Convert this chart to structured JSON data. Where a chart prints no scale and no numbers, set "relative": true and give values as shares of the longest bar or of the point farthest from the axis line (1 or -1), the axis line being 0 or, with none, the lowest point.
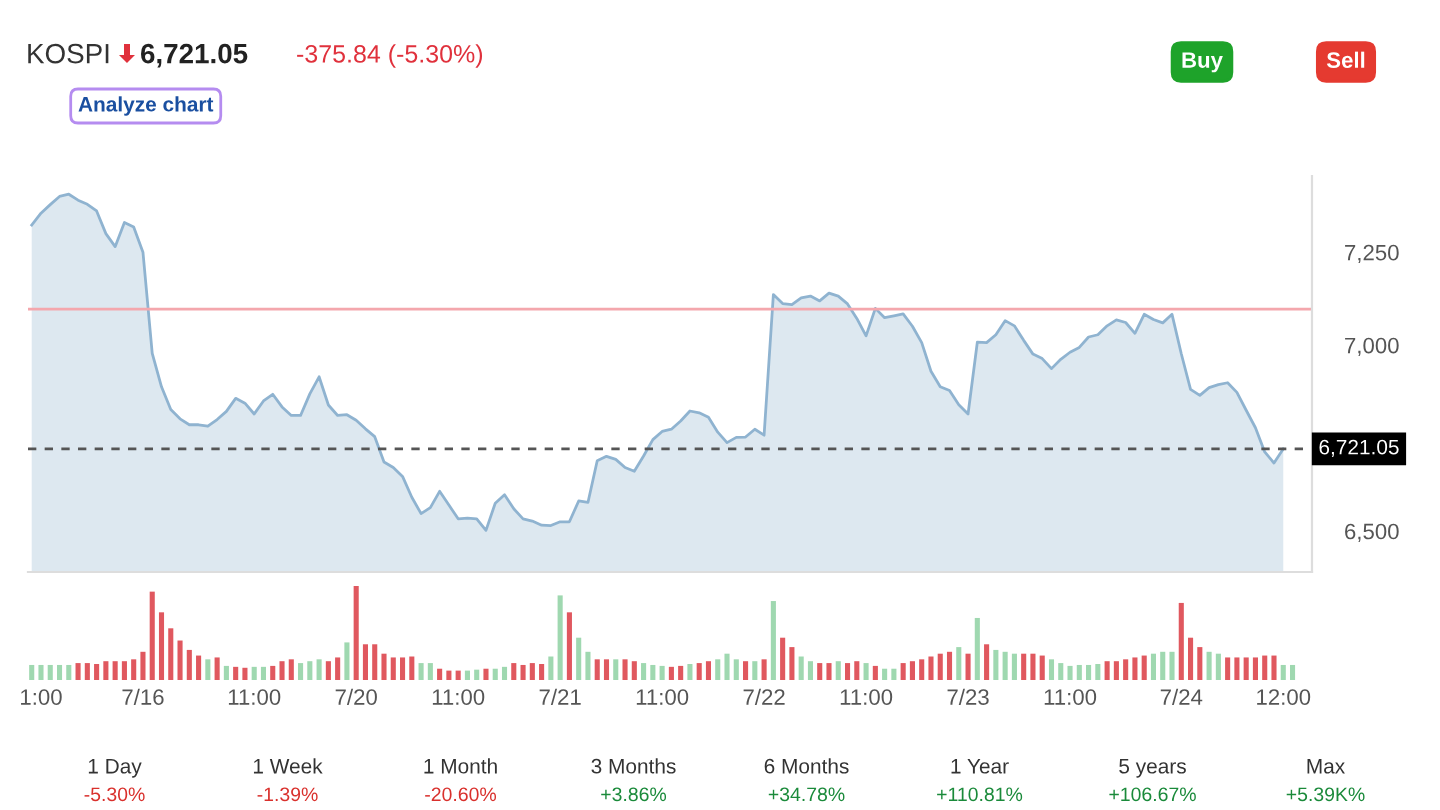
{
  "chart_data": [
    {
      "type": "area",
      "title": "KOSPI",
      "annotations": [
        "6,721.05",
        "-375.84 (-5.30%)",
        "Analyze chart",
        "Buy",
        "Sell",
        "1 Day",
        "-5.30%",
        "1 Week",
        "-1.39%",
        "1 Month",
        "-20.60%",
        "3 Months",
        "+3.86%",
        "6 Months",
        "+34.78%",
        "1 Year",
        "+110.81%",
        "5 years",
        "+106.67%",
        "Max",
        "+5.39K%"
      ],
      "categories": [
        null,
        "1:00",
        null,
        null,
        null,
        null,
        null,
        null,
        null,
        null,
        null,
        null,
        "7/16",
        null,
        null,
        null,
        null,
        null,
        null,
        null,
        null,
        null,
        null,
        null,
        "11:00",
        null,
        null,
        null,
        null,
        null,
        null,
        null,
        null,
        null,
        null,
        "7/20",
        null,
        null,
        null,
        null,
        null,
        null,
        null,
        null,
        null,
        null,
        "11:00",
        null,
        null,
        null,
        null,
        null,
        null,
        null,
        null,
        null,
        null,
        "7/21",
        null,
        null,
        null,
        null,
        null,
        null,
        null,
        null,
        null,
        null,
        "11:00",
        null,
        null,
        null,
        null,
        null,
        null,
        null,
        null,
        null,
        null,
        "7/22",
        null,
        null,
        null,
        null,
        null,
        null,
        null,
        null,
        null,
        null,
        "11:00",
        null,
        null,
        null,
        null,
        null,
        null,
        null,
        null,
        null,
        null,
        "7/23",
        null,
        null,
        null,
        null,
        null,
        null,
        null,
        null,
        null,
        null,
        "11:00",
        null,
        null,
        null,
        null,
        null,
        null,
        null,
        null,
        null,
        null,
        null,
        "7/24",
        null,
        null,
        null,
        null,
        null,
        null,
        null,
        null,
        null,
        null,
        "12:00",
        null
      ],
      "series": [
        {
          "color": "#8fb3d0",
          "values": [
            7323,
            7355,
            7378,
            7400,
            7406,
            7390,
            7379,
            7361,
            7300,
            7265,
            7330,
            7318,
            7250,
            6978,
            6888,
            6827,
            6802,
            6786,
            6786,
            6782,
            6800,
            6822,
            6857,
            6844,
            6815,
            6850,
            6868,
            6834,
            6811,
            6811,
            6869,
            6915,
            6839,
            6811,
            6813,
            6798,
            6775,
            6754,
            6686,
            6671,
            6647,
            6591,
            6547,
            6563,
            6607,
            6570,
            6533,
            6535,
            6533,
            6502,
            6575,
            6598,
            6560,
            6533,
            6527,
            6516,
            6515,
            6525,
            6525,
            6581,
            6577,
            6689,
            6701,
            6693,
            6671,
            6661,
            6702,
            6746,
            6768,
            6774,
            6796,
            6823,
            6818,
            6806,
            6766,
            6738,
            6752,
            6753,
            6774,
            6758,
            7136,
            7112,
            7109,
            7127,
            7132,
            7119,
            7140,
            7132,
            7111,
            7072,
            7025,
            7099,
            7074,
            7079,
            7084,
            7051,
            7007,
            6930,
            6888,
            6878,
            6840,
            6815,
            7008,
            7007,
            7028,
            7066,
            7052,
            7013,
            6976,
            6964,
            6937,
            6962,
            6981,
            6994,
            7022,
            7028,
            7052,
            7068,
            7061,
            7032,
            7083,
            7069,
            7060,
            7083,
            6977,
            6881,
            6865,
            6886,
            6894,
            6899,
            6873,
            6825,
            6778,
            6713,
            6683,
            6721,
            null
          ]
        }
      ],
      "ylim": [
        6390,
        7455
      ],
      "yticks": [
        {
          "value": 6500,
          "label": "6,500"
        },
        {
          "value": 7000,
          "label": "7,000"
        },
        {
          "value": 7250,
          "label": "7,250"
        }
      ],
      "ref_lines": [
        {
          "axis": "y",
          "value": 7096.89,
          "color": "#f4a7ad",
          "line_style": "solid"
        },
        {
          "axis": "y",
          "value": 6721.05,
          "label": "6,721.05",
          "color": "#555555",
          "line_style": "dashed"
        }
      ],
      "grid": false,
      "legend": false
    },
    {
      "type": "bar",
      "relative": true,
      "categories": [
        null,
        null,
        null,
        null,
        null,
        null,
        null,
        null,
        null,
        null,
        null,
        null,
        null,
        null,
        null,
        null,
        null,
        null,
        null,
        null,
        null,
        null,
        null,
        null,
        null,
        null,
        null,
        null,
        null,
        null,
        null,
        null,
        null,
        null,
        null,
        null,
        null,
        null,
        null,
        null,
        null,
        null,
        null,
        null,
        null,
        null,
        null,
        null,
        null,
        null,
        null,
        null,
        null,
        null,
        null,
        null,
        null,
        null,
        null,
        null,
        null,
        null,
        null,
        null,
        null,
        null,
        null,
        null,
        null,
        null,
        null,
        null,
        null,
        null,
        null,
        null,
        null,
        null,
        null,
        null,
        null,
        null,
        null,
        null,
        null,
        null,
        null,
        null,
        null,
        null,
        null,
        null,
        null,
        null,
        null,
        null,
        null,
        null,
        null,
        null,
        null,
        null,
        null,
        null,
        null,
        null,
        null,
        null,
        null,
        null,
        null,
        null,
        null,
        null,
        null,
        null,
        null,
        null,
        null,
        null,
        null,
        null,
        null,
        null,
        null,
        null,
        null,
        null,
        null,
        null,
        null,
        null,
        null,
        null,
        null,
        null,
        null
      ],
      "series": [
        {
          "values": [
            0.16,
            0.16,
            0.16,
            0.16,
            0.16,
            0.18,
            0.18,
            0.17,
            0.2,
            0.2,
            0.2,
            0.22,
            0.3,
            0.94,
            0.72,
            0.55,
            0.42,
            0.32,
            0.26,
            0.22,
            0.24,
            0.15,
            0.14,
            0.13,
            0.14,
            0.14,
            0.15,
            0.2,
            0.22,
            0.18,
            0.2,
            0.22,
            0.2,
            0.24,
            0.4,
            1.0,
            0.38,
            0.38,
            0.28,
            0.24,
            0.24,
            0.25,
            0.18,
            0.18,
            0.12,
            0.1,
            0.1,
            0.1,
            0.11,
            0.12,
            0.12,
            0.14,
            0.18,
            0.16,
            0.18,
            0.17,
            0.25,
            0.9,
            0.72,
            0.45,
            0.3,
            0.22,
            0.22,
            0.22,
            0.22,
            0.2,
            0.18,
            0.16,
            0.15,
            0.14,
            0.15,
            0.17,
            0.18,
            0.2,
            0.22,
            0.28,
            0.22,
            0.2,
            0.2,
            0.22,
            0.84,
            0.45,
            0.35,
            0.25,
            0.2,
            0.18,
            0.18,
            0.2,
            0.18,
            0.2,
            0.18,
            0.15,
            0.12,
            0.12,
            0.18,
            0.2,
            0.22,
            0.25,
            0.28,
            0.3,
            0.35,
            0.28,
            0.66,
            0.38,
            0.32,
            0.3,
            0.28,
            0.28,
            0.28,
            0.26,
            0.22,
            0.18,
            0.15,
            0.16,
            0.16,
            0.17,
            0.2,
            0.2,
            0.22,
            0.24,
            0.26,
            0.28,
            0.3,
            0.3,
            0.82,
            0.45,
            0.35,
            0.3,
            0.28,
            0.24,
            0.24,
            0.24,
            0.24,
            0.26,
            0.26,
            0.16,
            0.16
          ],
          "colors": [
            "#9fd8b0",
            "#9fd8b0",
            "#9fd8b0",
            "#9fd8b0",
            "#9fd8b0",
            "#e0585f",
            "#e0585f",
            "#e0585f",
            "#e0585f",
            "#e0585f",
            "#e0585f",
            "#e0585f",
            "#e0585f",
            "#e0585f",
            "#e0585f",
            "#e0585f",
            "#e0585f",
            "#e0585f",
            "#e0585f",
            "#9fd8b0",
            "#e0585f",
            "#9fd8b0",
            "#e0585f",
            "#e0585f",
            "#9fd8b0",
            "#9fd8b0",
            "#e0585f",
            "#e0585f",
            "#e0585f",
            "#9fd8b0",
            "#9fd8b0",
            "#9fd8b0",
            "#e0585f",
            "#e0585f",
            "#9fd8b0",
            "#e0585f",
            "#e0585f",
            "#e0585f",
            "#e0585f",
            "#e0585f",
            "#e0585f",
            "#e0585f",
            "#9fd8b0",
            "#9fd8b0",
            "#e0585f",
            "#e0585f",
            "#e0585f",
            "#9fd8b0",
            "#9fd8b0",
            "#e0585f",
            "#9fd8b0",
            "#9fd8b0",
            "#e0585f",
            "#e0585f",
            "#e0585f",
            "#e0585f",
            "#9fd8b0",
            "#9fd8b0",
            "#e0585f",
            "#9fd8b0",
            "#9fd8b0",
            "#e0585f",
            "#e0585f",
            "#9fd8b0",
            "#e0585f",
            "#e0585f",
            "#9fd8b0",
            "#9fd8b0",
            "#9fd8b0",
            "#e0585f",
            "#e0585f",
            "#9fd8b0",
            "#e0585f",
            "#e0585f",
            "#9fd8b0",
            "#9fd8b0",
            "#9fd8b0",
            "#e0585f",
            "#9fd8b0",
            "#e0585f",
            "#9fd8b0",
            "#e0585f",
            "#e0585f",
            "#9fd8b0",
            "#9fd8b0",
            "#e0585f",
            "#e0585f",
            "#9fd8b0",
            "#e0585f",
            "#e0585f",
            "#9fd8b0",
            "#e0585f",
            "#9fd8b0",
            "#9fd8b0",
            "#e0585f",
            "#e0585f",
            "#e0585f",
            "#e0585f",
            "#e0585f",
            "#e0585f",
            "#9fd8b0",
            "#e0585f",
            "#9fd8b0",
            "#e0585f",
            "#9fd8b0",
            "#9fd8b0",
            "#9fd8b0",
            "#e0585f",
            "#e0585f",
            "#e0585f",
            "#9fd8b0",
            "#9fd8b0",
            "#9fd8b0",
            "#9fd8b0",
            "#9fd8b0",
            "#9fd8b0",
            "#e0585f",
            "#e0585f",
            "#e0585f",
            "#e0585f",
            "#e0585f",
            "#9fd8b0",
            "#9fd8b0",
            "#9fd8b0",
            "#e0585f",
            "#e0585f",
            "#e0585f",
            "#9fd8b0",
            "#9fd8b0",
            "#e0585f",
            "#e0585f",
            "#e0585f",
            "#e0585f",
            "#e0585f",
            "#e0585f",
            "#9fd8b0",
            "#9fd8b0"
          ]
        }
      ],
      "grid": false,
      "legend": false
    }
  ]
}
